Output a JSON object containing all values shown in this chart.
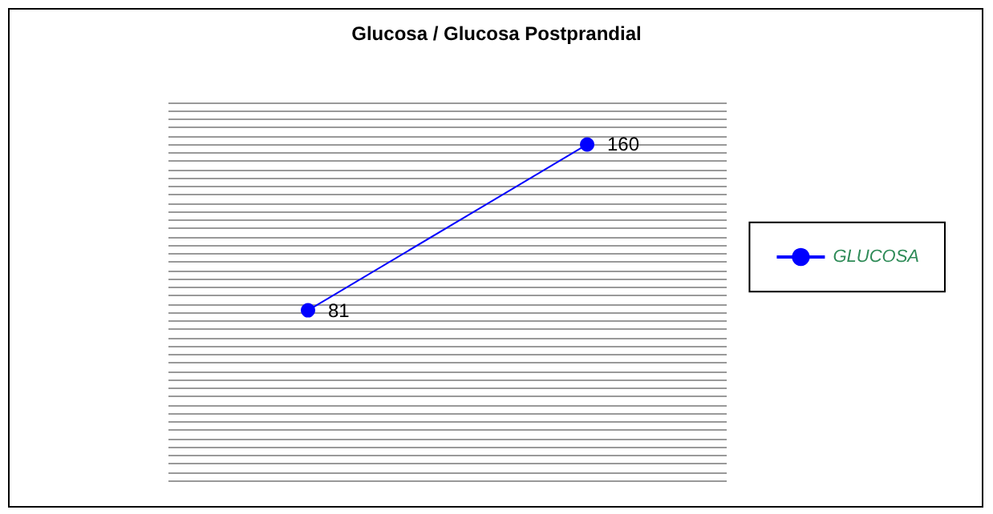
{
  "chart_data": {
    "type": "line",
    "title": "Glucosa / Glucosa Postprandial",
    "categories": [
      null,
      null
    ],
    "series": [
      {
        "name": "GLUCOSA",
        "color": "#0000ff",
        "values": [
          81,
          160
        ]
      }
    ],
    "ylim": [
      0,
      180
    ],
    "yticks": [
      {
        "value": 0,
        "label": null
      },
      {
        "value": 4,
        "label": null
      },
      {
        "value": 8,
        "label": null
      },
      {
        "value": 12,
        "label": null
      },
      {
        "value": 16,
        "label": null
      },
      {
        "value": 20,
        "label": null
      },
      {
        "value": 24,
        "label": null
      },
      {
        "value": 28,
        "label": null
      },
      {
        "value": 32,
        "label": null
      },
      {
        "value": 36,
        "label": null
      },
      {
        "value": 40,
        "label": null
      },
      {
        "value": 44,
        "label": null
      },
      {
        "value": 48,
        "label": null
      },
      {
        "value": 52,
        "label": null
      },
      {
        "value": 56,
        "label": null
      },
      {
        "value": 60,
        "label": null
      },
      {
        "value": 64,
        "label": null
      },
      {
        "value": 68,
        "label": null
      },
      {
        "value": 72,
        "label": null
      },
      {
        "value": 76,
        "label": null
      },
      {
        "value": 80,
        "label": null
      },
      {
        "value": 84,
        "label": null
      },
      {
        "value": 88,
        "label": null
      },
      {
        "value": 92,
        "label": null
      },
      {
        "value": 96,
        "label": null
      },
      {
        "value": 100,
        "label": null
      },
      {
        "value": 104,
        "label": null
      },
      {
        "value": 108,
        "label": null
      },
      {
        "value": 112,
        "label": null
      },
      {
        "value": 116,
        "label": null
      },
      {
        "value": 120,
        "label": null
      },
      {
        "value": 124,
        "label": null
      },
      {
        "value": 128,
        "label": null
      },
      {
        "value": 132,
        "label": null
      },
      {
        "value": 136,
        "label": null
      },
      {
        "value": 140,
        "label": null
      },
      {
        "value": 144,
        "label": null
      },
      {
        "value": 148,
        "label": null
      },
      {
        "value": 152,
        "label": null
      },
      {
        "value": 156,
        "label": null
      },
      {
        "value": 160,
        "label": null
      },
      {
        "value": 164,
        "label": null
      },
      {
        "value": 168,
        "label": null
      },
      {
        "value": 172,
        "label": null
      },
      {
        "value": 176,
        "label": null
      },
      {
        "value": 180,
        "label": null
      }
    ],
    "grid": "y",
    "legend": "right",
    "marker": "circle",
    "line_style": "solid",
    "data_labels": true
  }
}
